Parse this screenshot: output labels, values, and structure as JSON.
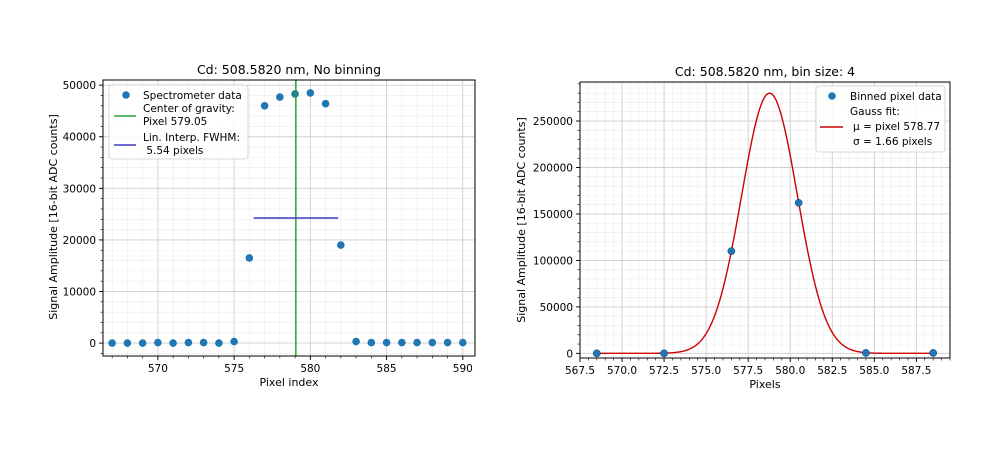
{
  "chart_data": [
    {
      "type": "scatter",
      "title": "Cd: 508.5820 nm, No binning",
      "xlabel": "Pixel index",
      "ylabel": "Signal Amplitude [16-bit ADC counts]",
      "xlim": [
        566.4,
        590.8
      ],
      "ylim": [
        -2500,
        51000
      ],
      "xticks": [
        570,
        575,
        580,
        585,
        590
      ],
      "xtick_labels": [
        "570",
        "575",
        "580",
        "585",
        "590"
      ],
      "yticks": [
        0,
        10000,
        20000,
        30000,
        40000,
        50000
      ],
      "ytick_labels": [
        "0",
        "10000",
        "20000",
        "30000",
        "40000",
        "50000"
      ],
      "grid": true,
      "legend_position": "upper-left",
      "series": [
        {
          "name": "Spectrometer data",
          "kind": "scatter",
          "color": "#1f77b4",
          "x": [
            567,
            568,
            569,
            570,
            571,
            572,
            573,
            574,
            575,
            576,
            577,
            578,
            579,
            580,
            581,
            582,
            583,
            584,
            585,
            586,
            587,
            588,
            589,
            590
          ],
          "y": [
            0,
            0,
            0,
            100,
            0,
            100,
            100,
            0,
            300,
            16500,
            46000,
            47700,
            48300,
            48500,
            46400,
            19000,
            300,
            100,
            100,
            100,
            100,
            100,
            100,
            100
          ]
        },
        {
          "name_lines": [
            "Center of gravity:",
            "Pixel 579.05"
          ],
          "kind": "vline",
          "color": "#2ca02c",
          "x": 579.05
        },
        {
          "name_lines": [
            "Lin. Interp. FWHM:",
            " 5.54 pixels"
          ],
          "kind": "hline",
          "color": "#3b3bbf",
          "x_start": 576.28,
          "x_end": 581.82,
          "y": 24250
        }
      ]
    },
    {
      "type": "line",
      "title": "Cd: 508.5820 nm, bin size: 4",
      "xlabel": "Pixels",
      "ylabel": "Signal Amplitude [16-bit ADC counts]",
      "xlim": [
        567.5,
        589.5
      ],
      "ylim": [
        -5000,
        292000
      ],
      "xticks": [
        567.5,
        570.0,
        572.5,
        575.0,
        577.5,
        580.0,
        582.5,
        585.0,
        587.5
      ],
      "xtick_labels": [
        "567.5",
        "570.0",
        "572.5",
        "575.0",
        "577.5",
        "580.0",
        "582.5",
        "585.0",
        "587.5"
      ],
      "yticks": [
        0,
        50000,
        100000,
        150000,
        200000,
        250000
      ],
      "ytick_labels": [
        "0",
        "50000",
        "100000",
        "150000",
        "200000",
        "250000"
      ],
      "grid": true,
      "legend_position": "upper-right",
      "series": [
        {
          "name": "Binned pixel data",
          "kind": "scatter",
          "color": "#1f77b4",
          "x": [
            568.5,
            572.5,
            576.5,
            580.5,
            584.5,
            588.5
          ],
          "y": [
            0,
            0,
            110000,
            162000,
            500,
            500
          ]
        },
        {
          "name_lines": [
            "Gauss fit:",
            "$\\mu$ = pixel 578.77",
            "$\\sigma$ = 1.66 pixels"
          ],
          "legend_display": [
            "Gauss fit:",
            "μ = pixel 578.77",
            "σ = 1.66 pixels"
          ],
          "kind": "gauss",
          "color": "#cc0000",
          "amplitude": 280000,
          "mu": 578.77,
          "sigma": 1.66,
          "x_range": [
            568.5,
            588.5
          ]
        }
      ]
    }
  ]
}
